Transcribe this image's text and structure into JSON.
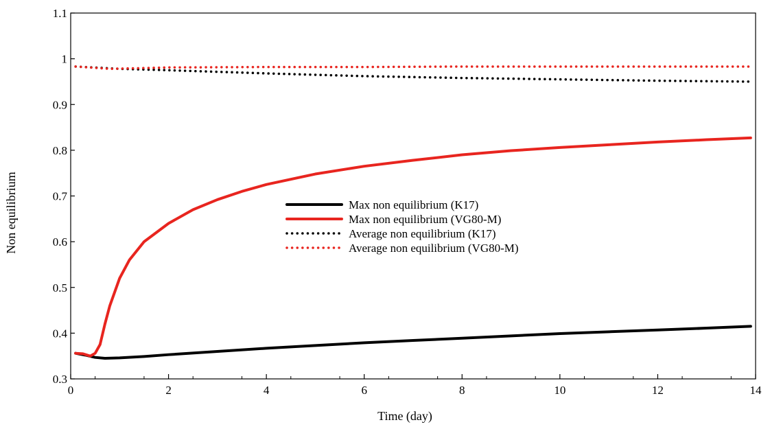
{
  "chart_data": {
    "type": "line",
    "xlabel": "Time (day)",
    "ylabel": "Non equilibrium",
    "xlim": [
      0,
      14
    ],
    "ylim": [
      0.3,
      1.1
    ],
    "xticks": [
      0,
      2,
      4,
      6,
      8,
      10,
      12,
      14
    ],
    "xtick_labels": [
      "0",
      "2",
      "4",
      "6",
      "8",
      "10",
      "12",
      "14"
    ],
    "yticks": [
      0.3,
      0.4,
      0.5,
      0.6,
      0.7,
      0.8,
      0.9,
      1.0,
      1.1
    ],
    "ytick_labels": [
      "0.3",
      "0.4",
      "0.5",
      "0.6",
      "0.7",
      "0.8",
      "0.9",
      "1",
      "1.1"
    ],
    "grid": false,
    "legend_position": "center",
    "series": [
      {
        "name": "Max non equilibrium (K17)",
        "color": "#000000",
        "style": "solid",
        "x": [
          0.1,
          0.3,
          0.5,
          0.7,
          1.0,
          1.5,
          2,
          3,
          4,
          5,
          6,
          7,
          8,
          9,
          10,
          11,
          12,
          13,
          13.9
        ],
        "y": [
          0.356,
          0.352,
          0.347,
          0.345,
          0.346,
          0.349,
          0.353,
          0.36,
          0.367,
          0.373,
          0.379,
          0.384,
          0.389,
          0.394,
          0.399,
          0.403,
          0.407,
          0.411,
          0.415
        ]
      },
      {
        "name": "Max non equilibrium (VG80-M)",
        "color": "#e8251f",
        "style": "solid",
        "x": [
          0.1,
          0.25,
          0.4,
          0.5,
          0.6,
          0.7,
          0.8,
          1.0,
          1.2,
          1.5,
          2,
          2.5,
          3,
          3.5,
          4,
          5,
          6,
          7,
          8,
          9,
          10,
          11,
          12,
          13,
          13.9
        ],
        "y": [
          0.356,
          0.355,
          0.35,
          0.356,
          0.375,
          0.42,
          0.46,
          0.52,
          0.56,
          0.6,
          0.64,
          0.67,
          0.692,
          0.71,
          0.725,
          0.748,
          0.765,
          0.778,
          0.79,
          0.799,
          0.806,
          0.812,
          0.818,
          0.823,
          0.827
        ]
      },
      {
        "name": "Average non equilibrium (K17)",
        "color": "#000000",
        "style": "dotted",
        "x": [
          0.1,
          1,
          2,
          4,
          6,
          8,
          10,
          12,
          13.9
        ],
        "y": [
          0.983,
          0.978,
          0.975,
          0.968,
          0.962,
          0.958,
          0.955,
          0.952,
          0.95
        ]
      },
      {
        "name": "Average non equilibrium (VG80-M)",
        "color": "#e8251f",
        "style": "dotted",
        "x": [
          0.1,
          0.8,
          2,
          4,
          6,
          8,
          10,
          12,
          13.9
        ],
        "y": [
          0.983,
          0.978,
          0.981,
          0.982,
          0.982,
          0.983,
          0.983,
          0.983,
          0.983
        ]
      }
    ]
  }
}
